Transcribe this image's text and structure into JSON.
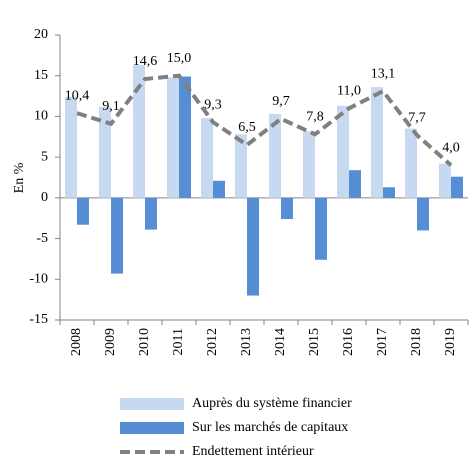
{
  "chart_data": {
    "type": "bar",
    "y_label": "En %",
    "categories": [
      "2008",
      "2009",
      "2010",
      "2011",
      "2012",
      "2013",
      "2014",
      "2015",
      "2016",
      "2017",
      "2018",
      "2019"
    ],
    "series": [
      {
        "name": "Auprès du système financier",
        "type": "bar",
        "color": "#c6d9f1",
        "values": [
          12.4,
          11.2,
          16.3,
          14.8,
          9.8,
          7.8,
          10.3,
          8.2,
          11.3,
          13.6,
          8.5,
          4.2
        ]
      },
      {
        "name": "Sur les marchés de capitaux",
        "type": "bar",
        "color": "#558ed5",
        "values": [
          -3.3,
          -9.3,
          -3.9,
          14.9,
          2.1,
          -12.0,
          -2.6,
          -7.6,
          3.4,
          1.3,
          -4.0,
          2.6
        ]
      },
      {
        "name": "Endettement  intérieur",
        "type": "line",
        "color": "#808080",
        "values": [
          10.4,
          9.1,
          14.6,
          15.0,
          9.3,
          6.5,
          9.7,
          7.8,
          11.0,
          13.1,
          7.7,
          4.0
        ],
        "value_labels": [
          "10,4",
          "9,1",
          "14,6",
          "15,0",
          "9,3",
          "6,5",
          "9,7",
          "7,8",
          "11,0",
          "13,1",
          "7,7",
          "4,0"
        ]
      }
    ],
    "ylim": [
      -15,
      20
    ],
    "yticks": [
      -15,
      -10,
      -5,
      0,
      5,
      10,
      15,
      20
    ],
    "grid": false
  }
}
